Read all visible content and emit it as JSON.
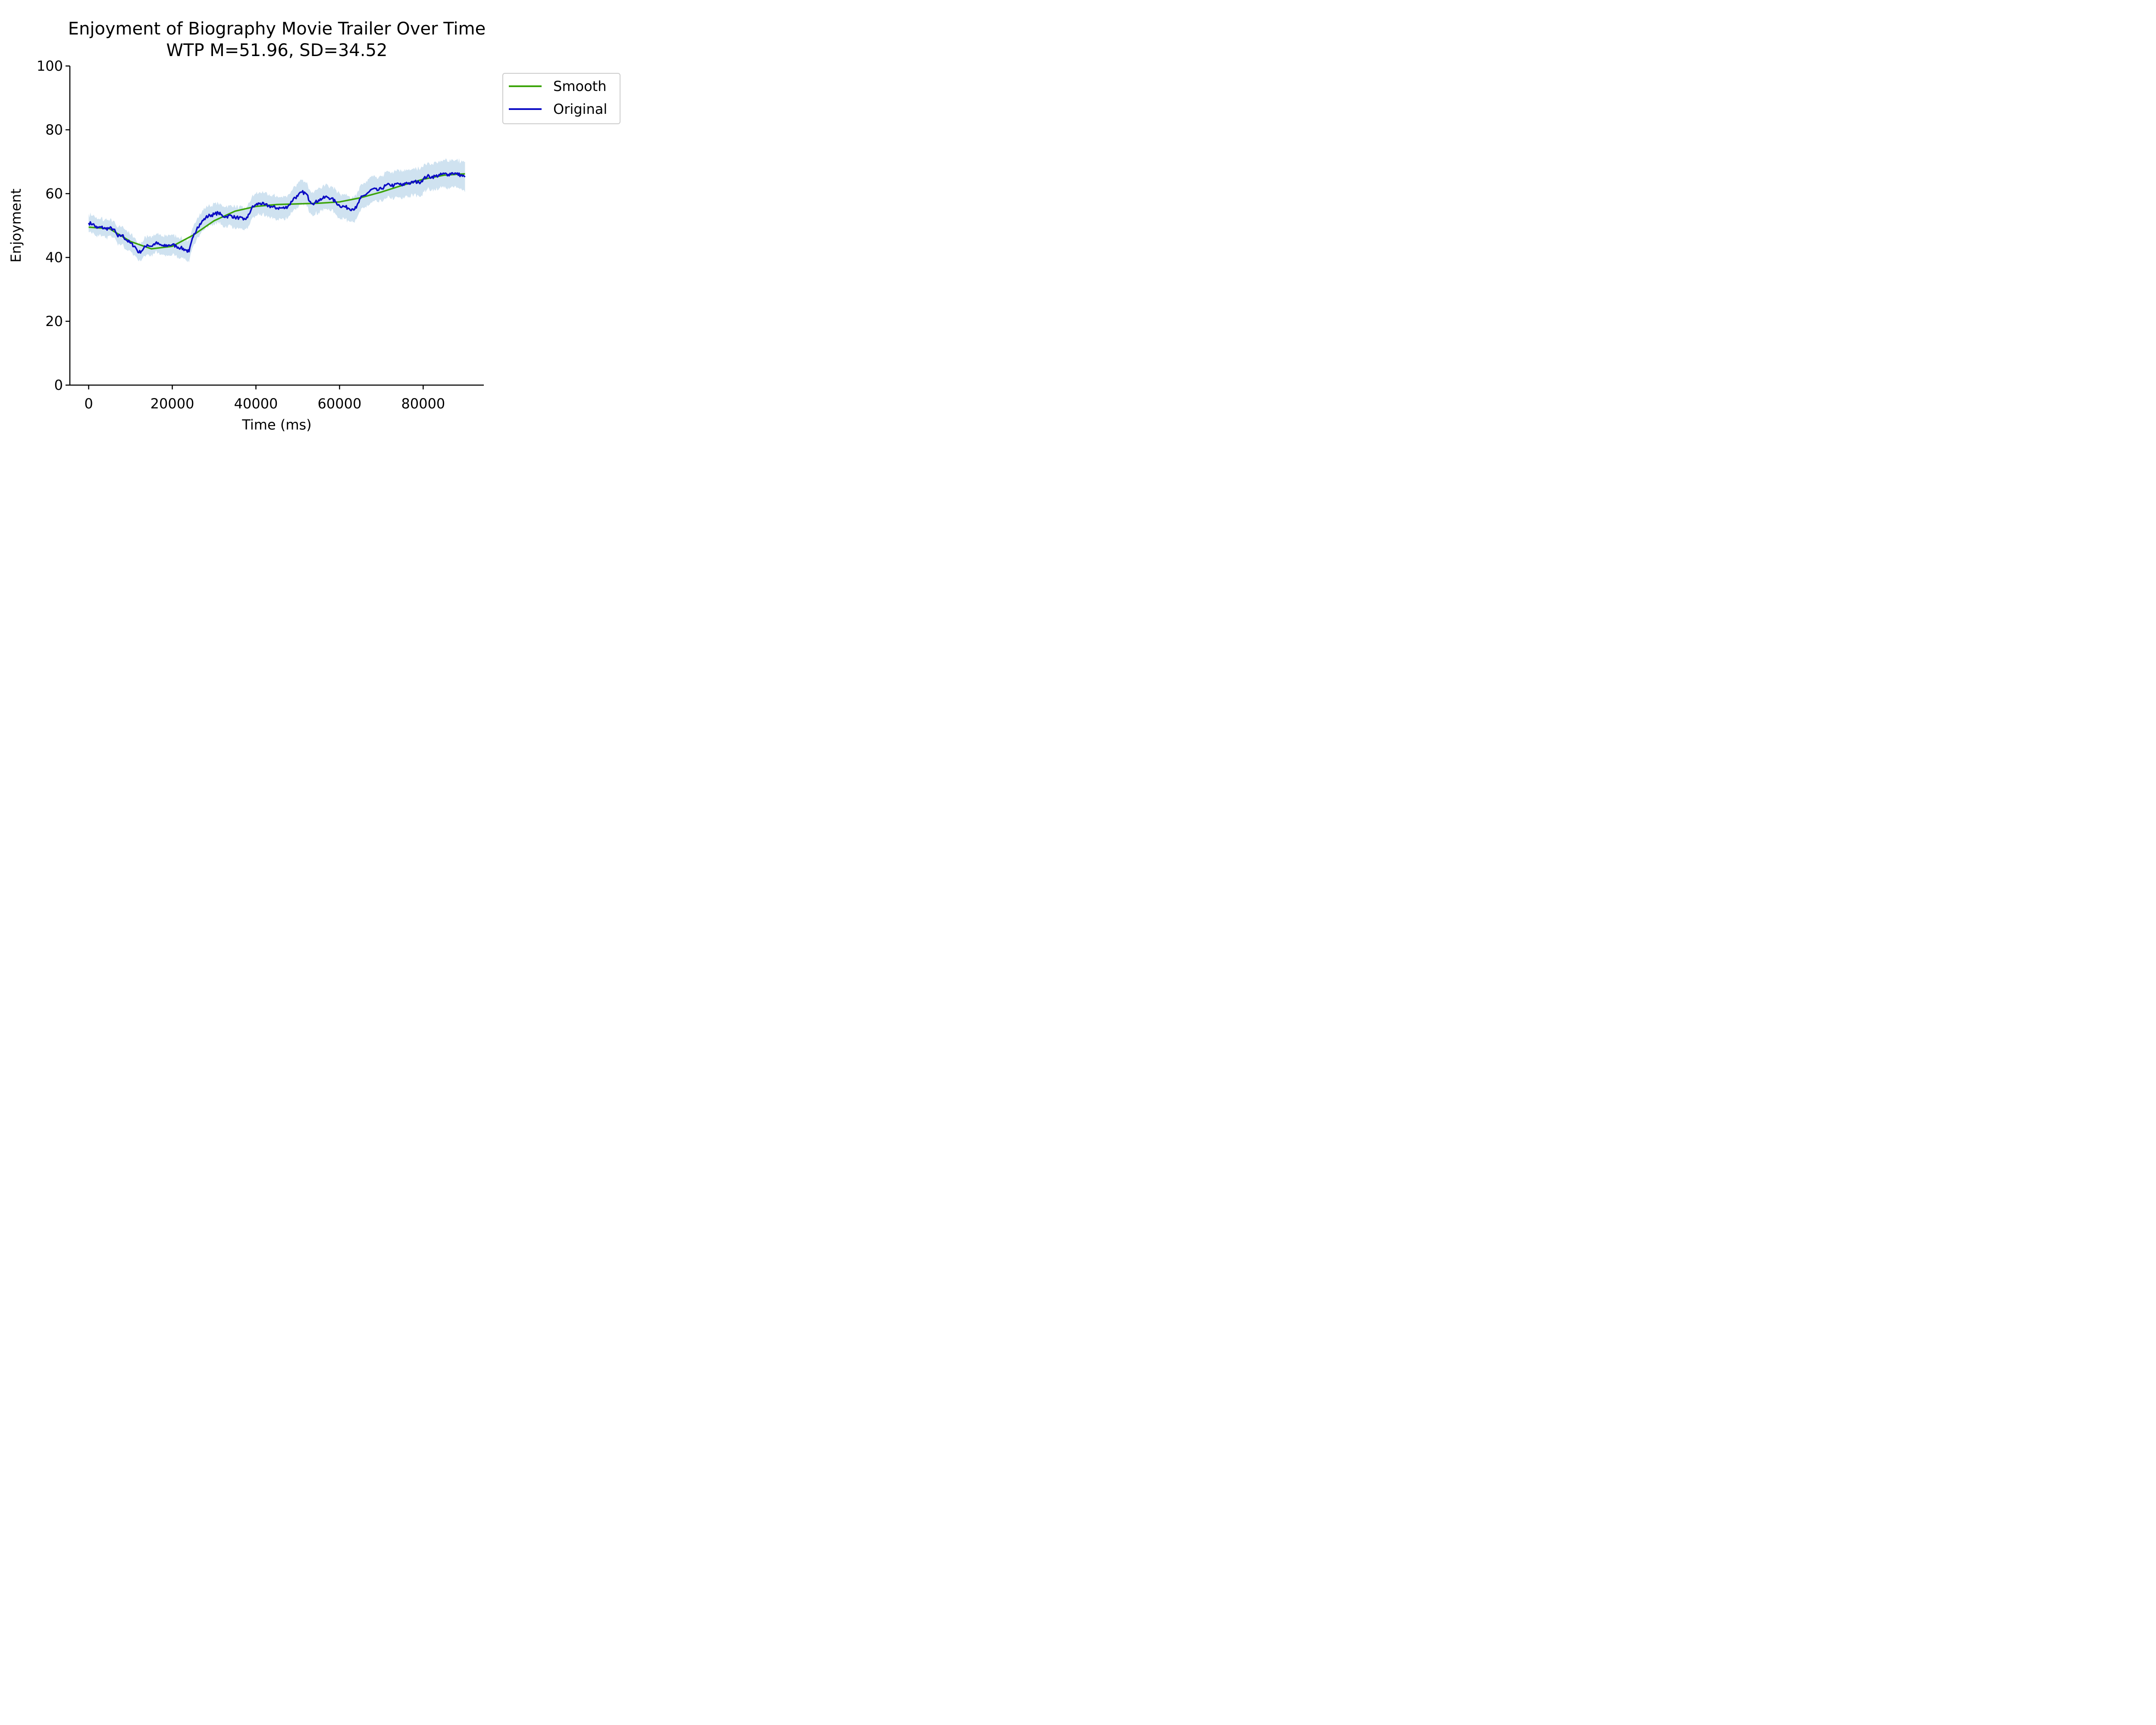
{
  "chart_data": {
    "type": "line",
    "title": "Enjoyment of Biography Movie Trailer Over Time",
    "subtitle": "WTP M=51.96, SD=34.52",
    "xlabel": "Time (ms)",
    "ylabel": "Enjoyment",
    "xlim": [
      -4500,
      94500
    ],
    "ylim": [
      0,
      100
    ],
    "x_ticks": [
      0,
      20000,
      40000,
      60000,
      80000
    ],
    "y_ticks": [
      0,
      20,
      40,
      60,
      80,
      100
    ],
    "grid": false,
    "legend_position": "upper right, outside plot",
    "band_color": "#cfe2f0",
    "series": [
      {
        "name": "Smooth",
        "color": "#3ca40a",
        "x": [
          0,
          5000,
          10000,
          15000,
          20000,
          25000,
          30000,
          35000,
          40000,
          45000,
          50000,
          55000,
          60000,
          65000,
          70000,
          75000,
          80000,
          85000,
          90000
        ],
        "values": [
          49.5,
          49,
          45,
          42.7,
          43.5,
          47,
          51.5,
          54.5,
          56,
          56.6,
          56.8,
          57,
          57.4,
          58.7,
          60.5,
          62.6,
          64.5,
          65.8,
          66.2
        ]
      },
      {
        "name": "Original",
        "color": "#0c0cc4",
        "x": [
          0,
          1000,
          2000,
          3000,
          4000,
          5000,
          6000,
          7000,
          8000,
          9000,
          10000,
          11000,
          12000,
          13000,
          14000,
          15000,
          16000,
          17000,
          18000,
          19000,
          20000,
          21000,
          22000,
          23000,
          24000,
          25000,
          26000,
          27000,
          28000,
          29000,
          30000,
          31000,
          32000,
          33000,
          34000,
          35000,
          36000,
          37000,
          38000,
          39000,
          40000,
          41000,
          42000,
          43000,
          44000,
          45000,
          46000,
          47000,
          48000,
          49000,
          50000,
          51000,
          52000,
          53000,
          54000,
          55000,
          56000,
          57000,
          58000,
          59000,
          60000,
          61000,
          62000,
          63000,
          64000,
          65000,
          66000,
          67000,
          68000,
          69000,
          70000,
          71000,
          72000,
          73000,
          74000,
          75000,
          76000,
          77000,
          78000,
          79000,
          80000,
          81000,
          82000,
          83000,
          84000,
          85000,
          86000,
          87000,
          88000,
          89000,
          90000
        ],
        "values": [
          50.8,
          50.5,
          49.2,
          49.5,
          49,
          49.2,
          48.8,
          46.5,
          47,
          45.5,
          44.5,
          43.5,
          41.5,
          42.5,
          44,
          43.5,
          44.5,
          44,
          43.5,
          43.8,
          44,
          43.5,
          43,
          42.5,
          41.8,
          46.5,
          49.5,
          51,
          52.5,
          53.2,
          53.5,
          54,
          53,
          52.8,
          53.2,
          52.5,
          52.5,
          51.8,
          52.5,
          55.5,
          56.5,
          57,
          56.5,
          56.2,
          55.8,
          55.5,
          55.5,
          55.5,
          56.5,
          58.5,
          59.2,
          60.5,
          60,
          57.5,
          57,
          58,
          58.5,
          59,
          58.5,
          57.5,
          56.2,
          56,
          55.5,
          55.2,
          55.5,
          58.5,
          59.5,
          60.5,
          61.5,
          61,
          61.5,
          62.5,
          62.8,
          62.5,
          63.2,
          62.5,
          63.5,
          63.2,
          63.8,
          63.5,
          64.5,
          65.5,
          65.2,
          65.5,
          65.8,
          66.2,
          66,
          66.5,
          66.2,
          65.8,
          65.2
        ]
      }
    ]
  }
}
